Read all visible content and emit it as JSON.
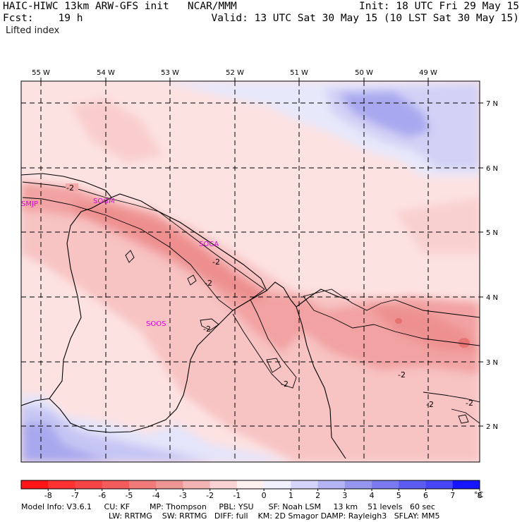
{
  "header": {
    "left_line1": "HAIC-HIWC 13km ARW-GFS init   NCAR/MMM",
    "left_line2": "Fcst:    19 h",
    "right_line1": "Init: 18 UTC Fri 29 May 15",
    "right_line2": "Valid: 13 UTC Sat 30 May 15 (10 LST Sat 30 May 15)",
    "field_name": "Lifted index"
  },
  "map": {
    "lon_labels": [
      "55 W",
      "54 W",
      "53 W",
      "52 W",
      "51 W",
      "50 W",
      "49 W"
    ],
    "lat_labels": [
      "7 N",
      "6 N",
      "5 N",
      "4 N",
      "3 N",
      "2 N"
    ],
    "stations": [
      "SMJP",
      "SOGM",
      "SOCA",
      "SOOS"
    ],
    "contour_label": "-2",
    "colors": {
      "light_red": "#fde2e2",
      "pink": "#f8c2c2",
      "medium_red": "#f2a0a0",
      "dark_pink": "#ec8a8a",
      "light_blue": "#e6e6fb",
      "medium_blue": "#c3c3f3",
      "deep_blue": "#a5a5ef"
    }
  },
  "colorbar": {
    "ticks": [
      "-8",
      "-7",
      "-6",
      "-5",
      "-4",
      "-3",
      "-2",
      "-1",
      "0",
      "1",
      "2",
      "3",
      "4",
      "5",
      "6",
      "7",
      "8"
    ],
    "unit": "°C",
    "colors": [
      "#ff1515",
      "#ff3232",
      "#f44646",
      "#f25c5c",
      "#f07a7a",
      "#ee9696",
      "#f4b4b4",
      "#fad4d4",
      "#fff0f0",
      "#f0f0ff",
      "#d4d4fa",
      "#b4b4f4",
      "#9696ee",
      "#7a7af0",
      "#5c5cf2",
      "#4646f4",
      "#1515ff"
    ]
  },
  "footer": {
    "line1": "Model Info: V3.6.1     CU: KF        MP: Thompson     PBL: YSU      SF: Noah LSM     13 km    51 levels   60 sec",
    "line2": "LW: RRTMG    SW: RRTMG   DIFF: full    KM: 2D Smagor DAMP: Rayleigh3   SFLAY: MM5"
  }
}
